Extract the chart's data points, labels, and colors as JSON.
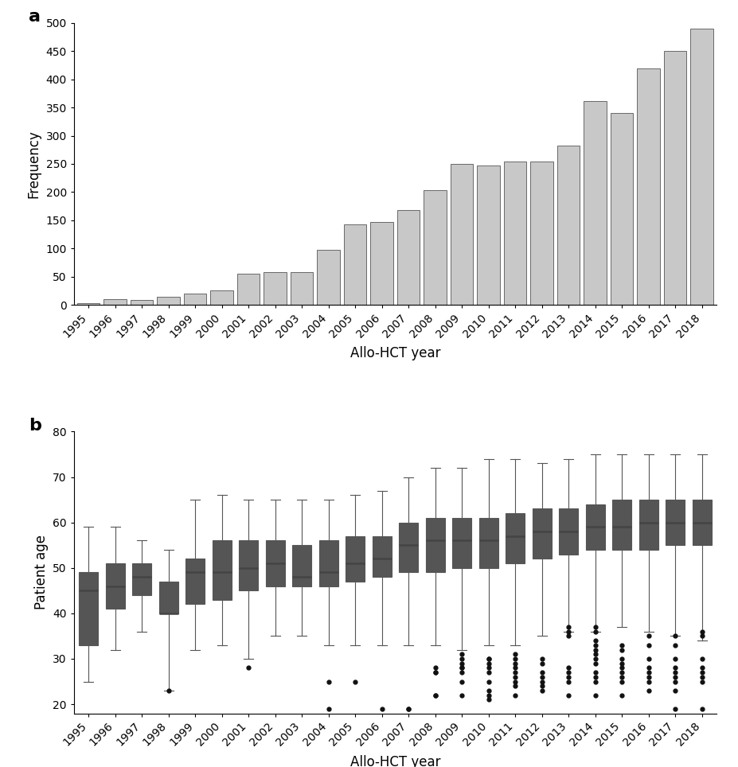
{
  "years": [
    1995,
    1996,
    1997,
    1998,
    1999,
    2000,
    2001,
    2002,
    2003,
    2004,
    2005,
    2006,
    2007,
    2008,
    2009,
    2010,
    2011,
    2012,
    2013,
    2014,
    2015,
    2016,
    2017,
    2018
  ],
  "bar_values": [
    3,
    10,
    9,
    14,
    20,
    25,
    55,
    58,
    58,
    98,
    142,
    147,
    168,
    204,
    250,
    247,
    254,
    254,
    283,
    362,
    340,
    420,
    450,
    490
  ],
  "bar_color": "#c8c8c8",
  "bar_edgecolor": "#555555",
  "bar_linewidth": 0.6,
  "ylabel_a": "Frequency",
  "xlabel_a": "Allo-HCT year",
  "ylim_a": [
    0,
    500
  ],
  "yticks_a": [
    0,
    50,
    100,
    150,
    200,
    250,
    300,
    350,
    400,
    450,
    500
  ],
  "ylabel_b": "Patient age",
  "xlabel_b": "Allo-HCT year",
  "ylim_b": [
    18,
    80
  ],
  "yticks_b": [
    20,
    30,
    40,
    50,
    60,
    70,
    80
  ],
  "box_facecolor": "#c8c8c8",
  "box_edgecolor": "#555555",
  "median_color": "#444444",
  "whisker_color": "#555555",
  "flier_color": "#111111",
  "box_stats": {
    "1995": {
      "q1": 33,
      "median": 45,
      "q3": 49,
      "whislo": 25,
      "whishi": 59
    },
    "1996": {
      "q1": 41,
      "median": 46,
      "q3": 51,
      "whislo": 32,
      "whishi": 59
    },
    "1997": {
      "q1": 44,
      "median": 48,
      "q3": 51,
      "whislo": 36,
      "whishi": 56
    },
    "1998": {
      "q1": 40,
      "median": 40,
      "q3": 47,
      "whislo": 23,
      "whishi": 54
    },
    "1999": {
      "q1": 42,
      "median": 49,
      "q3": 52,
      "whislo": 32,
      "whishi": 65
    },
    "2000": {
      "q1": 43,
      "median": 49,
      "q3": 56,
      "whislo": 33,
      "whishi": 66
    },
    "2001": {
      "q1": 45,
      "median": 50,
      "q3": 56,
      "whislo": 30,
      "whishi": 65
    },
    "2002": {
      "q1": 46,
      "median": 51,
      "q3": 56,
      "whislo": 35,
      "whishi": 65
    },
    "2003": {
      "q1": 46,
      "median": 48,
      "q3": 55,
      "whislo": 35,
      "whishi": 65
    },
    "2004": {
      "q1": 46,
      "median": 49,
      "q3": 56,
      "whislo": 33,
      "whishi": 65
    },
    "2005": {
      "q1": 47,
      "median": 51,
      "q3": 57,
      "whislo": 33,
      "whishi": 66
    },
    "2006": {
      "q1": 48,
      "median": 52,
      "q3": 57,
      "whislo": 33,
      "whishi": 67
    },
    "2007": {
      "q1": 49,
      "median": 55,
      "q3": 60,
      "whislo": 33,
      "whishi": 70
    },
    "2008": {
      "q1": 49,
      "median": 56,
      "q3": 61,
      "whislo": 33,
      "whishi": 72
    },
    "2009": {
      "q1": 50,
      "median": 56,
      "q3": 61,
      "whislo": 32,
      "whishi": 72
    },
    "2010": {
      "q1": 50,
      "median": 56,
      "q3": 61,
      "whislo": 33,
      "whishi": 74
    },
    "2011": {
      "q1": 51,
      "median": 57,
      "q3": 62,
      "whislo": 33,
      "whishi": 74
    },
    "2012": {
      "q1": 52,
      "median": 58,
      "q3": 63,
      "whislo": 35,
      "whishi": 73
    },
    "2013": {
      "q1": 53,
      "median": 58,
      "q3": 63,
      "whislo": 36,
      "whishi": 74
    },
    "2014": {
      "q1": 54,
      "median": 59,
      "q3": 64,
      "whislo": 36,
      "whishi": 75
    },
    "2015": {
      "q1": 54,
      "median": 59,
      "q3": 65,
      "whislo": 37,
      "whishi": 75
    },
    "2016": {
      "q1": 54,
      "median": 60,
      "q3": 65,
      "whislo": 36,
      "whishi": 75
    },
    "2017": {
      "q1": 55,
      "median": 60,
      "q3": 65,
      "whislo": 35,
      "whishi": 75
    },
    "2018": {
      "q1": 55,
      "median": 60,
      "q3": 65,
      "whislo": 34,
      "whishi": 75
    }
  },
  "outliers": {
    "1998": [
      23
    ],
    "2001": [
      28
    ],
    "2004": [
      25,
      19
    ],
    "2005": [
      25
    ],
    "2006": [
      19
    ],
    "2007": [
      19,
      19
    ],
    "2008": [
      27,
      27,
      28,
      22,
      22
    ],
    "2009": [
      22,
      25,
      27,
      28,
      28,
      29,
      30,
      31
    ],
    "2010": [
      21,
      22,
      23,
      25,
      27,
      28,
      29,
      30,
      30
    ],
    "2011": [
      22,
      24,
      25,
      26,
      27,
      28,
      29,
      30,
      31
    ],
    "2012": [
      23,
      24,
      25,
      26,
      27,
      29,
      30
    ],
    "2013": [
      22,
      25,
      26,
      27,
      28,
      35,
      36,
      37
    ],
    "2014": [
      22,
      25,
      26,
      27,
      29,
      30,
      31,
      32,
      33,
      34,
      36,
      37
    ],
    "2015": [
      22,
      25,
      26,
      27,
      28,
      29,
      30,
      32,
      33
    ],
    "2016": [
      23,
      25,
      26,
      27,
      28,
      30,
      33,
      35
    ],
    "2017": [
      19,
      23,
      25,
      26,
      27,
      28,
      30,
      33,
      35
    ],
    "2018": [
      19,
      25,
      26,
      27,
      28,
      30,
      35,
      36
    ]
  },
  "label_a": "a",
  "label_b": "b",
  "label_fontsize": 16,
  "axis_label_fontsize": 12,
  "tick_fontsize": 10,
  "background_color": "#ffffff"
}
